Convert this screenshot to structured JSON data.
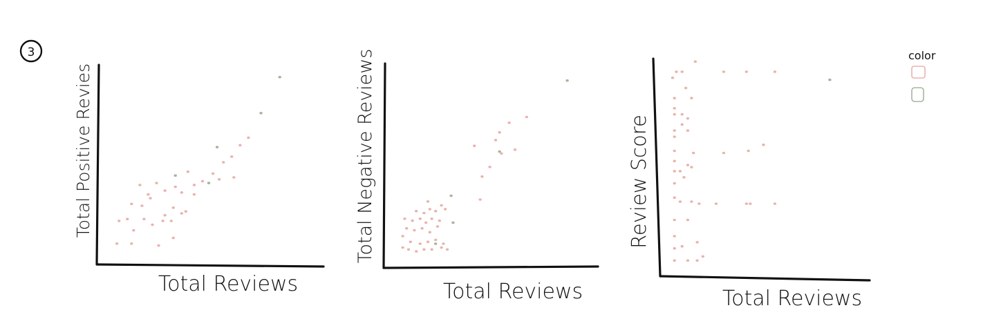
{
  "figure_number": "3",
  "legend": {
    "title": "color",
    "items": [
      {
        "color": "#e8b4ad"
      },
      {
        "color": "#a3b59d"
      }
    ]
  },
  "colors": {
    "pink": "#e8b4ad",
    "green": "#a3b59d",
    "ink": "#111111"
  },
  "chart_data": [
    {
      "type": "scatter",
      "title": "",
      "xlabel": "Total Reviews",
      "ylabel": "Total Positive Revies",
      "xlim": [
        0,
        100
      ],
      "ylim": [
        0,
        100
      ],
      "series": [
        {
          "color": "#e8b4ad",
          "points": [
            [
              7,
              7
            ],
            [
              14,
              7
            ],
            [
              27,
              6
            ],
            [
              34,
              10
            ],
            [
              8,
              19
            ],
            [
              15,
              14
            ],
            [
              20,
              20
            ],
            [
              24,
              17
            ],
            [
              29,
              19
            ],
            [
              33,
              19
            ],
            [
              12,
              20
            ],
            [
              30,
              22
            ],
            [
              38,
              23
            ],
            [
              14,
              28
            ],
            [
              19,
              27
            ],
            [
              23,
              31
            ],
            [
              34,
              26
            ],
            [
              40,
              24
            ],
            [
              18,
              38
            ],
            [
              26,
              39
            ],
            [
              22,
              33
            ],
            [
              38,
              34
            ],
            [
              30,
              35
            ],
            [
              35,
              37
            ],
            [
              44,
              38
            ],
            [
              48,
              40
            ],
            [
              41,
              45
            ],
            [
              53,
              44
            ],
            [
              58,
              50
            ],
            [
              62,
              53
            ],
            [
              66,
              59
            ],
            [
              70,
              63
            ],
            [
              63,
              42
            ],
            [
              44,
              33
            ],
            [
              56,
              41
            ]
          ]
        },
        {
          "color": "#a3b59d",
          "points": [
            [
              35,
              43
            ],
            [
              55,
              58
            ],
            [
              51,
              39
            ],
            [
              76,
              76
            ],
            [
              85,
              95
            ]
          ]
        }
      ]
    },
    {
      "type": "scatter",
      "title": "",
      "xlabel": "Total Reviews",
      "ylabel": "Total Negative Reviews",
      "xlim": [
        0,
        100
      ],
      "ylim": [
        0,
        100
      ],
      "series": [
        {
          "color": "#e8b4ad",
          "points": [
            [
              7,
              7
            ],
            [
              10,
              6
            ],
            [
              14,
              5
            ],
            [
              18,
              6
            ],
            [
              22,
              6
            ],
            [
              27,
              7
            ],
            [
              30,
              6
            ],
            [
              7,
              13
            ],
            [
              11,
              10
            ],
            [
              16,
              9
            ],
            [
              20,
              10
            ],
            [
              24,
              11
            ],
            [
              28,
              9
            ],
            [
              9,
              17
            ],
            [
              13,
              16
            ],
            [
              17,
              17
            ],
            [
              21,
              15
            ],
            [
              25,
              18
            ],
            [
              8,
              22
            ],
            [
              12,
              21
            ],
            [
              16,
              22
            ],
            [
              19,
              20
            ],
            [
              22,
              22
            ],
            [
              26,
              21
            ],
            [
              14,
              26
            ],
            [
              18,
              25
            ],
            [
              21,
              27
            ],
            [
              24,
              26
            ],
            [
              20,
              31
            ],
            [
              27,
              29
            ],
            [
              29,
              27
            ],
            [
              47,
              32
            ],
            [
              48,
              44
            ],
            [
              52,
              49
            ],
            [
              58,
              56
            ],
            [
              55,
              63
            ],
            [
              44,
              60
            ],
            [
              57,
              67
            ],
            [
              65,
              58
            ],
            [
              71,
              75
            ],
            [
              62,
              72
            ]
          ]
        },
        {
          "color": "#a3b59d",
          "points": [
            [
              32,
              34
            ],
            [
              33,
              20
            ],
            [
              24,
              9
            ],
            [
              57,
              57
            ],
            [
              92,
              94
            ]
          ]
        }
      ]
    },
    {
      "type": "scatter",
      "title": "",
      "xlabel": "Total Reviews",
      "ylabel": "Review Score",
      "xlim": [
        0,
        100
      ],
      "ylim": [
        0,
        100
      ],
      "series": [
        {
          "color": "#e8b4ad",
          "points": [
            [
              6,
              98
            ],
            [
              9,
              98
            ],
            [
              16,
              103
            ],
            [
              31,
              98
            ],
            [
              43,
              98
            ],
            [
              58,
              98
            ],
            [
              11,
              90
            ],
            [
              14,
              85
            ],
            [
              5,
              85
            ],
            [
              5,
              80
            ],
            [
              5,
              77
            ],
            [
              9,
              77
            ],
            [
              12,
              75
            ],
            [
              9,
              72
            ],
            [
              5,
              69
            ],
            [
              5,
              66
            ],
            [
              12,
              69
            ],
            [
              5,
              59
            ],
            [
              15,
              58
            ],
            [
              5,
              54
            ],
            [
              12,
              52
            ],
            [
              31,
              58
            ],
            [
              44,
              59
            ],
            [
              52,
              62
            ],
            [
              5,
              49
            ],
            [
              8,
              49
            ],
            [
              14,
              51
            ],
            [
              5,
              43
            ],
            [
              10,
              46
            ],
            [
              5,
              36
            ],
            [
              8,
              34
            ],
            [
              14,
              34
            ],
            [
              18,
              33
            ],
            [
              27,
              33
            ],
            [
              43,
              33
            ],
            [
              45,
              33
            ],
            [
              58,
              33
            ],
            [
              5,
              25
            ],
            [
              12,
              25
            ],
            [
              5,
              17
            ],
            [
              5,
              11
            ],
            [
              9,
              12
            ],
            [
              17,
              14
            ],
            [
              5,
              5
            ],
            [
              12,
              5
            ],
            [
              17,
              5
            ],
            [
              20,
              7
            ],
            [
              4,
              95
            ]
          ]
        },
        {
          "color": "#a3b59d",
          "points": [
            [
              87,
              94
            ]
          ]
        }
      ]
    }
  ]
}
